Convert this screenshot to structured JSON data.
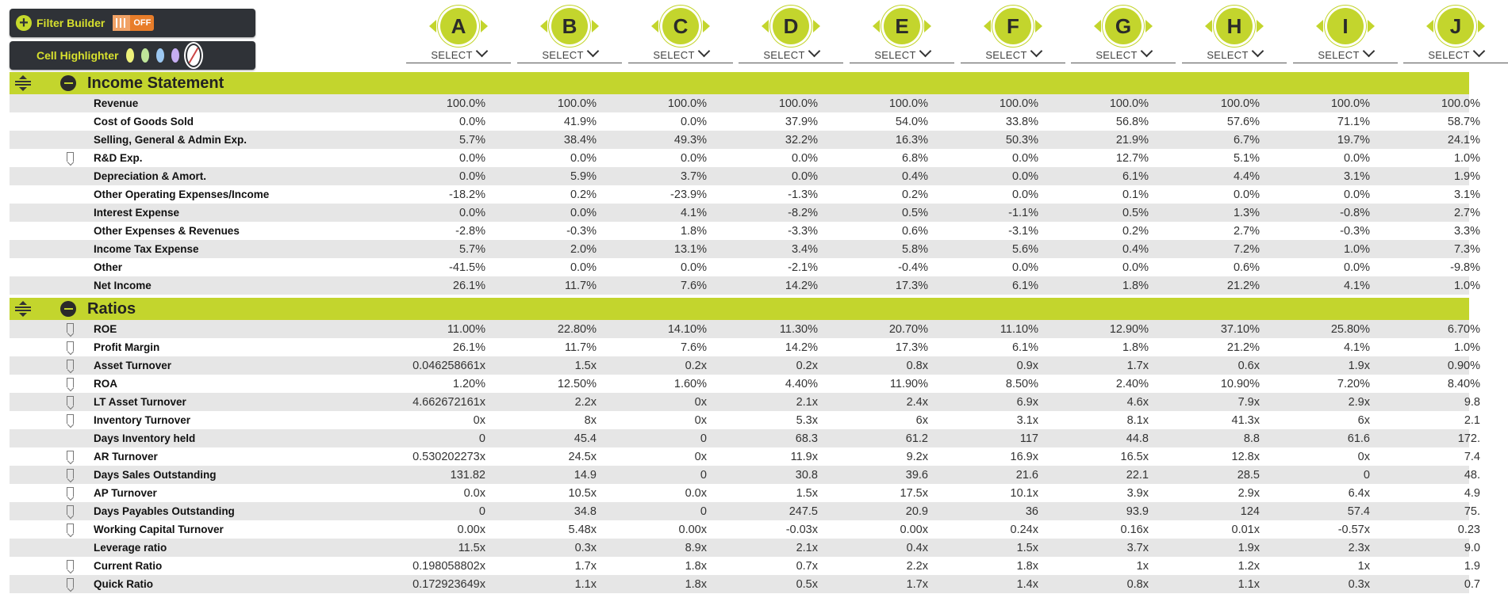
{
  "filter_builder": {
    "label": "Filter Builder",
    "toggle_state": "OFF"
  },
  "cell_highlighter": {
    "label": "Cell Highlighter",
    "swatches": [
      "yellow",
      "green",
      "blue",
      "purple",
      "none"
    ]
  },
  "columns": [
    {
      "letter": "A",
      "select": "SELECT"
    },
    {
      "letter": "B",
      "select": "SELECT"
    },
    {
      "letter": "C",
      "select": "SELECT"
    },
    {
      "letter": "D",
      "select": "SELECT"
    },
    {
      "letter": "E",
      "select": "SELECT"
    },
    {
      "letter": "F",
      "select": "SELECT"
    },
    {
      "letter": "G",
      "select": "SELECT"
    },
    {
      "letter": "H",
      "select": "SELECT"
    },
    {
      "letter": "I",
      "select": "SELECT"
    },
    {
      "letter": "J",
      "select": "SELECT"
    }
  ],
  "sections": [
    {
      "title": "Income Statement",
      "rows": [
        {
          "label": "Revenue",
          "bookmark": false,
          "values": [
            "100.0%",
            "100.0%",
            "100.0%",
            "100.0%",
            "100.0%",
            "100.0%",
            "100.0%",
            "100.0%",
            "100.0%",
            "100.0%"
          ]
        },
        {
          "label": "Cost of Goods Sold",
          "bookmark": false,
          "values": [
            "0.0%",
            "41.9%",
            "0.0%",
            "37.9%",
            "54.0%",
            "33.8%",
            "56.8%",
            "57.6%",
            "71.1%",
            "58.7%"
          ]
        },
        {
          "label": "Selling, General & Admin Exp.",
          "bookmark": false,
          "values": [
            "5.7%",
            "38.4%",
            "49.3%",
            "32.2%",
            "16.3%",
            "50.3%",
            "21.9%",
            "6.7%",
            "19.7%",
            "24.1%"
          ]
        },
        {
          "label": "R&D Exp.",
          "bookmark": true,
          "values": [
            "0.0%",
            "0.0%",
            "0.0%",
            "0.0%",
            "6.8%",
            "0.0%",
            "12.7%",
            "5.1%",
            "0.0%",
            "1.0%"
          ]
        },
        {
          "label": "Depreciation & Amort.",
          "bookmark": false,
          "values": [
            "0.0%",
            "5.9%",
            "3.7%",
            "0.0%",
            "0.4%",
            "0.0%",
            "6.1%",
            "4.4%",
            "3.1%",
            "1.9%"
          ]
        },
        {
          "label": "Other Operating Expenses/Income",
          "bookmark": false,
          "values": [
            "-18.2%",
            "0.2%",
            "-23.9%",
            "-1.3%",
            "0.2%",
            "0.0%",
            "0.1%",
            "0.0%",
            "0.0%",
            "3.1%"
          ]
        },
        {
          "label": "Interest Expense",
          "bookmark": false,
          "values": [
            "0.0%",
            "0.0%",
            "4.1%",
            "-8.2%",
            "0.5%",
            "-1.1%",
            "0.5%",
            "1.3%",
            "-0.8%",
            "2.7%"
          ]
        },
        {
          "label": "Other Expenses & Revenues",
          "bookmark": false,
          "values": [
            "-2.8%",
            "-0.3%",
            "1.8%",
            "-3.3%",
            "0.6%",
            "-3.1%",
            "0.2%",
            "2.7%",
            "-0.3%",
            "3.3%"
          ]
        },
        {
          "label": "Income Tax Expense",
          "bookmark": false,
          "values": [
            "5.7%",
            "2.0%",
            "13.1%",
            "3.4%",
            "5.8%",
            "5.6%",
            "0.4%",
            "7.2%",
            "1.0%",
            "7.3%"
          ]
        },
        {
          "label": "Other",
          "bookmark": false,
          "values": [
            "-41.5%",
            "0.0%",
            "0.0%",
            "-2.1%",
            "-0.4%",
            "0.0%",
            "0.0%",
            "0.6%",
            "0.0%",
            "-9.8%"
          ]
        },
        {
          "label": "Net Income",
          "bookmark": false,
          "values": [
            "26.1%",
            "11.7%",
            "7.6%",
            "14.2%",
            "17.3%",
            "6.1%",
            "1.8%",
            "21.2%",
            "4.1%",
            "1.0%"
          ]
        }
      ]
    },
    {
      "title": "Ratios",
      "rows": [
        {
          "label": "ROE",
          "bookmark": true,
          "values": [
            "11.00%",
            "22.80%",
            "14.10%",
            "11.30%",
            "20.70%",
            "11.10%",
            "12.90%",
            "37.10%",
            "25.80%",
            "6.70%"
          ]
        },
        {
          "label": "Profit Margin",
          "bookmark": true,
          "values": [
            "26.1%",
            "11.7%",
            "7.6%",
            "14.2%",
            "17.3%",
            "6.1%",
            "1.8%",
            "21.2%",
            "4.1%",
            "1.0%"
          ]
        },
        {
          "label": "Asset Turnover",
          "bookmark": true,
          "values": [
            "0.046258661x",
            "1.5x",
            "0.2x",
            "0.2x",
            "0.8x",
            "0.9x",
            "1.7x",
            "0.6x",
            "1.9x",
            "0.90%"
          ]
        },
        {
          "label": "ROA",
          "bookmark": true,
          "values": [
            "1.20%",
            "12.50%",
            "1.60%",
            "4.40%",
            "11.90%",
            "8.50%",
            "2.40%",
            "10.90%",
            "7.20%",
            "8.40%"
          ]
        },
        {
          "label": "LT Asset Turnover",
          "bookmark": true,
          "values": [
            "4.662672161x",
            "2.2x",
            "0x",
            "2.1x",
            "2.4x",
            "6.9x",
            "4.6x",
            "7.9x",
            "2.9x",
            "9.8"
          ]
        },
        {
          "label": "Inventory Turnover",
          "bookmark": true,
          "values": [
            "0x",
            "8x",
            "0x",
            "5.3x",
            "6x",
            "3.1x",
            "8.1x",
            "41.3x",
            "6x",
            "2.1"
          ]
        },
        {
          "label": "Days Inventory held",
          "bookmark": false,
          "values": [
            "0",
            "45.4",
            "0",
            "68.3",
            "61.2",
            "117",
            "44.8",
            "8.8",
            "61.6",
            "172."
          ]
        },
        {
          "label": "AR Turnover",
          "bookmark": true,
          "values": [
            "0.530202273x",
            "24.5x",
            "0x",
            "11.9x",
            "9.2x",
            "16.9x",
            "16.5x",
            "12.8x",
            "0x",
            "7.4"
          ]
        },
        {
          "label": "Days Sales Outstanding",
          "bookmark": true,
          "values": [
            "131.82",
            "14.9",
            "0",
            "30.8",
            "39.6",
            "21.6",
            "22.1",
            "28.5",
            "0",
            "48."
          ]
        },
        {
          "label": "AP Turnover",
          "bookmark": true,
          "values": [
            "0.0x",
            "10.5x",
            "0.0x",
            "1.5x",
            "17.5x",
            "10.1x",
            "3.9x",
            "2.9x",
            "6.4x",
            "4.9"
          ]
        },
        {
          "label": "Days Payables Outstanding",
          "bookmark": true,
          "values": [
            "0",
            "34.8",
            "0",
            "247.5",
            "20.9",
            "36",
            "93.9",
            "124",
            "57.4",
            "75."
          ]
        },
        {
          "label": "Working Capital Turnover",
          "bookmark": true,
          "values": [
            "0.00x",
            "5.48x",
            "0.00x",
            "-0.03x",
            "0.00x",
            "0.24x",
            "0.16x",
            "0.01x",
            "-0.57x",
            "0.23"
          ]
        },
        {
          "label": "Leverage ratio",
          "bookmark": false,
          "values": [
            "11.5x",
            "0.3x",
            "8.9x",
            "2.1x",
            "0.4x",
            "1.5x",
            "3.7x",
            "1.9x",
            "2.3x",
            "9.0"
          ]
        },
        {
          "label": "Current Ratio",
          "bookmark": true,
          "values": [
            "0.198058802x",
            "1.7x",
            "1.8x",
            "0.7x",
            "2.2x",
            "1.8x",
            "1x",
            "1.2x",
            "1x",
            "1.9"
          ]
        },
        {
          "label": "Quick Ratio",
          "bookmark": true,
          "values": [
            "0.172923649x",
            "1.1x",
            "1.8x",
            "0.5x",
            "1.7x",
            "1.4x",
            "0.8x",
            "1.1x",
            "0.3x",
            "0.7"
          ]
        }
      ]
    }
  ]
}
